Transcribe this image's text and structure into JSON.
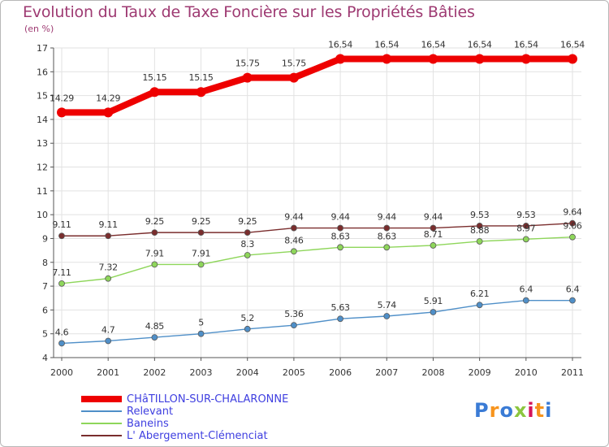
{
  "header": {
    "title": "Evolution du Taux de Taxe Foncière sur les Propriétés Bâties",
    "unit": "(en %)"
  },
  "logo": {
    "text": "Proxiti",
    "colors": [
      "#3a7bd5",
      "#f7941d",
      "#3a7bd5",
      "#8cc63f",
      "#d4145a",
      "#f7941d",
      "#3a7bd5"
    ]
  },
  "chart_data": {
    "type": "line",
    "title": "Evolution du Taux de Taxe Foncière sur les Propriétés Bâties",
    "ylabel": "(en %)",
    "xlabel": "",
    "x": [
      "2000",
      "2001",
      "2002",
      "2003",
      "2004",
      "2005",
      "2006",
      "2007",
      "2008",
      "2009",
      "2010",
      "2011"
    ],
    "ylim": [
      4,
      17
    ],
    "yticks": [
      "4",
      "5",
      "6",
      "7",
      "8",
      "9",
      "10",
      "11",
      "12",
      "13",
      "14",
      "15",
      "16",
      "17"
    ],
    "grid": true,
    "legend_position": "bottom-left",
    "series": [
      {
        "name": "CHâTILLON-SUR-CHALARONNE",
        "color": "#ee0000",
        "values": [
          14.29,
          14.29,
          15.15,
          15.15,
          15.75,
          15.75,
          16.54,
          16.54,
          16.54,
          16.54,
          16.54,
          16.54
        ],
        "labels": [
          "14.29",
          "14.29",
          "15.15",
          "15.15",
          "15.75",
          "15.75",
          "16.54",
          "16.54",
          "16.54",
          "16.54",
          "16.54",
          "16.54"
        ]
      },
      {
        "name": "Relevant",
        "color": "#4f8fc8",
        "values": [
          4.6,
          4.7,
          4.85,
          5,
          5.2,
          5.36,
          5.63,
          5.74,
          5.91,
          6.21,
          6.4,
          6.4
        ],
        "labels": [
          "4.6",
          "4.7",
          "4.85",
          "5",
          "5.2",
          "5.36",
          "5.63",
          "5.74",
          "5.91",
          "6.21",
          "6.4",
          "6.4"
        ]
      },
      {
        "name": "Baneins",
        "color": "#8ed65a",
        "values": [
          7.11,
          7.32,
          7.91,
          7.91,
          8.3,
          8.46,
          8.63,
          8.63,
          8.71,
          8.88,
          8.97,
          9.06
        ],
        "labels": [
          "7.11",
          "7.32",
          "7.91",
          "7.91",
          "8.3",
          "8.46",
          "8.63",
          "8.63",
          "8.71",
          "8.88",
          "8.97",
          "9.06"
        ]
      },
      {
        "name": "L' Abergement-Clémenciat",
        "color": "#7a2d2d",
        "values": [
          9.11,
          9.11,
          9.25,
          9.25,
          9.25,
          9.44,
          9.44,
          9.44,
          9.44,
          9.53,
          9.53,
          9.64
        ],
        "labels": [
          "9.11",
          "9.11",
          "9.25",
          "9.25",
          "9.25",
          "9.44",
          "9.44",
          "9.44",
          "9.44",
          "9.53",
          "9.53",
          "9.64"
        ]
      }
    ]
  }
}
